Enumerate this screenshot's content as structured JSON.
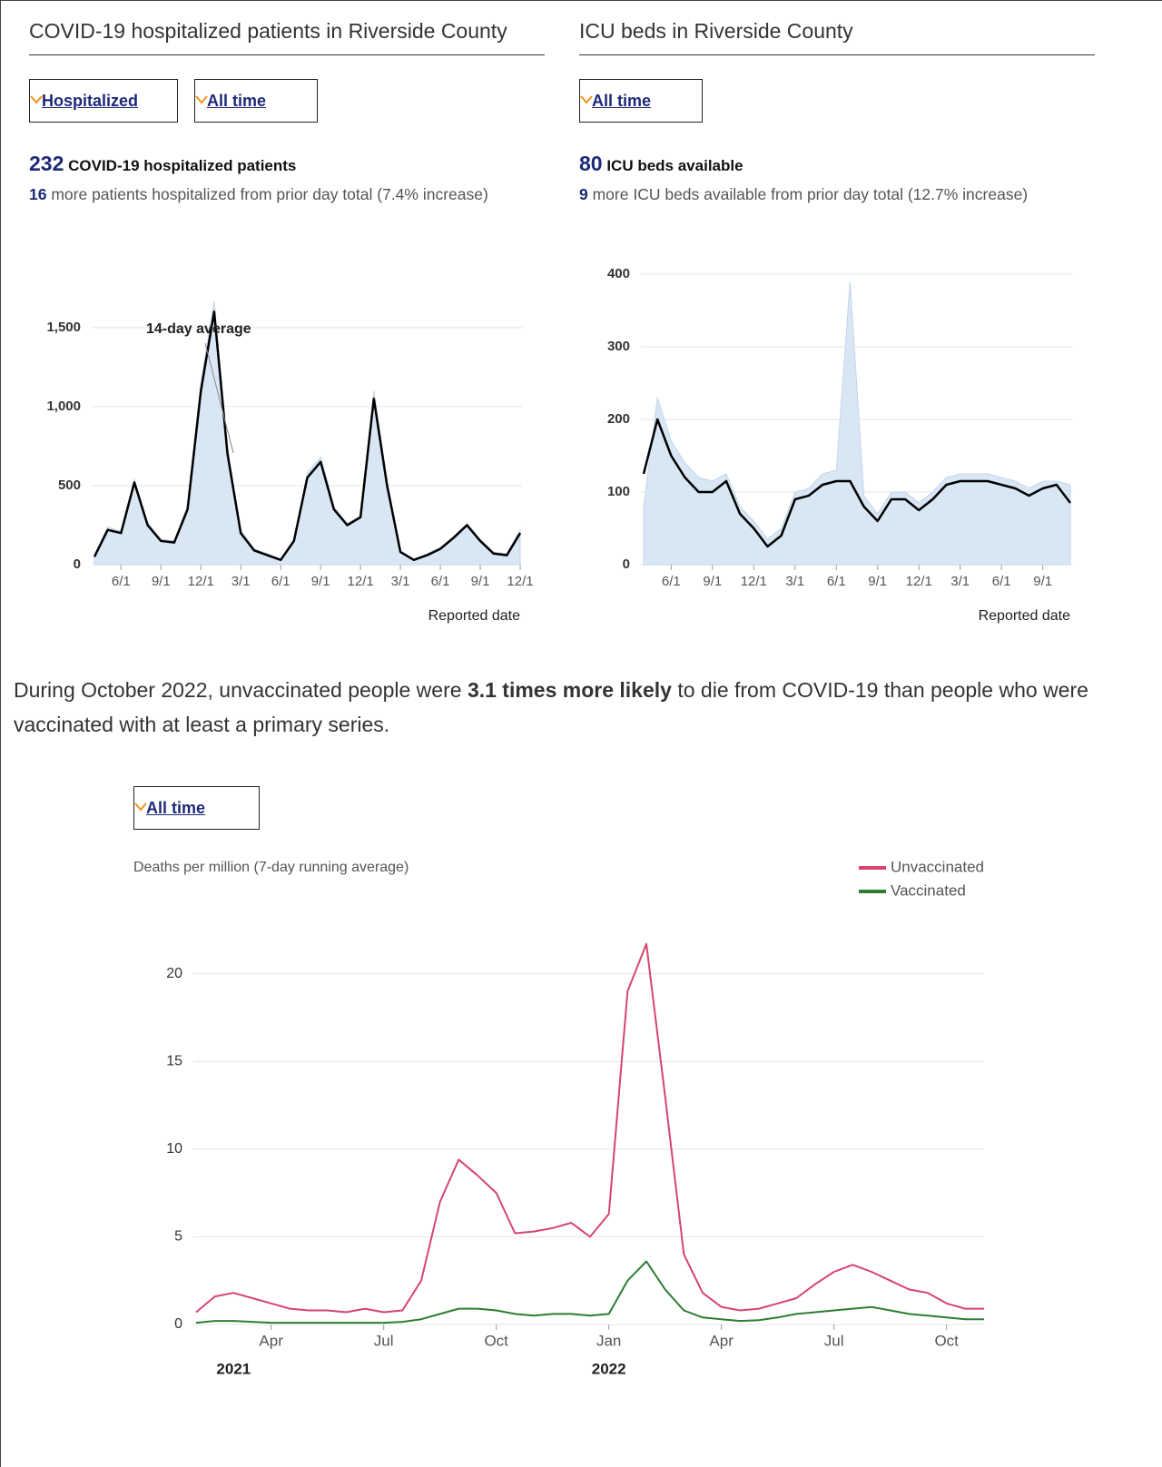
{
  "summary": [
    "During October 2022, unvaccinated people were ",
    "3.1 times more likely",
    " to die from COVID-19 than people who were vaccinated with at least a primary series."
  ],
  "chart_data": [
    {
      "type": "line",
      "title": "COVID-19 hospitalized patients in Riverside County",
      "dropdowns": [
        "Hospitalized",
        "All time"
      ],
      "headline": {
        "value": 232,
        "label": "COVID-19 hospitalized patients"
      },
      "detail": {
        "value": 16,
        "label": "more patients hospitalized from prior day total (7.4% increase)"
      },
      "annotation": "14-day average",
      "x_label": "Reported date",
      "categories": [
        null,
        null,
        "6/1",
        null,
        null,
        "9/1",
        null,
        null,
        "12/1",
        null,
        null,
        "3/1",
        null,
        null,
        "6/1",
        null,
        null,
        "9/1",
        null,
        null,
        "12/1",
        null,
        null,
        "3/1",
        null,
        null,
        "6/1",
        null,
        null,
        "9/1",
        null,
        null,
        "12/1"
      ],
      "series": [
        {
          "style": "area",
          "color": "#d9e6f4",
          "values": [
            60,
            240,
            210,
            540,
            270,
            160,
            150,
            370,
            1150,
            1670,
            740,
            220,
            100,
            70,
            35,
            160,
            580,
            680,
            370,
            260,
            310,
            1100,
            530,
            90,
            35,
            70,
            110,
            180,
            260,
            160,
            80,
            70,
            220
          ]
        },
        {
          "style": "line",
          "color": "#000000",
          "values": [
            50,
            220,
            200,
            520,
            250,
            150,
            140,
            350,
            1100,
            1600,
            700,
            200,
            90,
            60,
            30,
            150,
            550,
            650,
            350,
            250,
            300,
            1050,
            500,
            80,
            30,
            60,
            100,
            170,
            250,
            150,
            70,
            60,
            200
          ]
        }
      ],
      "ylim": [
        0,
        1700
      ],
      "yticks": [
        0,
        500,
        {
          "value": 1000,
          "label": "1,000"
        },
        {
          "value": 1500,
          "label": "1,500"
        }
      ],
      "grid": true
    },
    {
      "type": "line",
      "title": "ICU beds in Riverside County",
      "dropdowns": [
        "All time"
      ],
      "headline": {
        "value": 80,
        "label": "ICU beds available"
      },
      "detail": {
        "value": 9,
        "label": "more ICU beds available from prior day total (12.7% increase)"
      },
      "x_label": "Reported date",
      "categories": [
        null,
        null,
        "6/1",
        null,
        null,
        "9/1",
        null,
        null,
        "12/1",
        null,
        null,
        "3/1",
        null,
        null,
        "6/1",
        null,
        null,
        "9/1",
        null,
        null,
        "12/1",
        null,
        null,
        "3/1",
        null,
        null,
        "6/1",
        null,
        null,
        "9/1",
        null,
        null
      ],
      "series": [
        {
          "style": "area",
          "color": "#d9e6f4",
          "values": [
            80,
            230,
            170,
            140,
            120,
            115,
            125,
            80,
            60,
            35,
            50,
            100,
            105,
            125,
            130,
            390,
            95,
            70,
            100,
            100,
            85,
            100,
            120,
            125,
            125,
            125,
            120,
            115,
            105,
            115,
            115,
            110
          ]
        },
        {
          "style": "line",
          "color": "#000000",
          "values": [
            125,
            200,
            150,
            120,
            100,
            100,
            115,
            70,
            50,
            25,
            40,
            90,
            95,
            110,
            115,
            115,
            80,
            60,
            90,
            90,
            75,
            90,
            110,
            115,
            115,
            115,
            110,
            105,
            95,
            105,
            110,
            85
          ]
        }
      ],
      "ylim": [
        0,
        400
      ],
      "yticks": [
        0,
        100,
        200,
        300,
        400
      ],
      "grid": true
    },
    {
      "type": "line",
      "dropdowns": [
        "All time"
      ],
      "y_label": "Deaths per million (7-day running average)",
      "categories": [
        null,
        null,
        null,
        null,
        "Apr",
        null,
        null,
        null,
        null,
        null,
        "Jul",
        null,
        null,
        null,
        null,
        null,
        "Oct",
        null,
        null,
        null,
        null,
        null,
        "Jan",
        null,
        null,
        null,
        null,
        null,
        "Apr",
        null,
        null,
        null,
        null,
        null,
        "Jul",
        null,
        null,
        null,
        null,
        null,
        "Oct",
        null,
        null
      ],
      "category_groups": [
        null,
        null,
        "2021",
        null,
        null,
        null,
        null,
        null,
        null,
        null,
        null,
        null,
        null,
        null,
        null,
        null,
        null,
        null,
        null,
        null,
        null,
        null,
        "2022",
        null,
        null,
        null,
        null,
        null,
        null,
        null,
        null,
        null,
        null,
        null,
        null,
        null,
        null,
        null,
        null,
        null,
        null,
        null,
        null
      ],
      "series": [
        {
          "name": "Unvaccinated",
          "style": "line",
          "color": "#d6456e",
          "values": [
            0.7,
            1.6,
            1.8,
            1.5,
            1.2,
            0.9,
            0.8,
            0.8,
            0.7,
            0.9,
            0.7,
            0.8,
            2.5,
            7.0,
            9.4,
            8.5,
            7.5,
            5.2,
            5.3,
            5.5,
            5.8,
            5.0,
            6.3,
            19.0,
            21.7,
            13.0,
            4.0,
            1.8,
            1.0,
            0.8,
            0.9,
            1.2,
            1.5,
            2.3,
            3.0,
            3.4,
            3.0,
            2.5,
            2.0,
            1.8,
            1.2,
            0.9,
            0.9
          ]
        },
        {
          "name": "Vaccinated",
          "style": "line",
          "color": "#2e7d32",
          "values": [
            0.1,
            0.2,
            0.2,
            0.15,
            0.1,
            0.1,
            0.1,
            0.1,
            0.1,
            0.1,
            0.1,
            0.15,
            0.3,
            0.6,
            0.9,
            0.9,
            0.8,
            0.6,
            0.5,
            0.6,
            0.6,
            0.5,
            0.6,
            2.5,
            3.6,
            2.0,
            0.8,
            0.4,
            0.3,
            0.2,
            0.25,
            0.4,
            0.6,
            0.7,
            0.8,
            0.9,
            1.0,
            0.8,
            0.6,
            0.5,
            0.4,
            0.3,
            0.3
          ]
        }
      ],
      "ylim": [
        0,
        22
      ],
      "yticks": [
        0,
        5,
        10,
        15,
        20
      ],
      "grid": true,
      "legend": "top-right"
    }
  ]
}
